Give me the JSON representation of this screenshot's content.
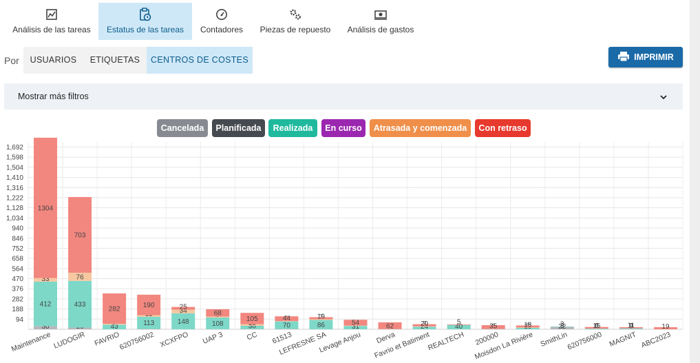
{
  "top_tabs": [
    {
      "label": "Análisis de las tareas",
      "icon": "chart-report-icon",
      "active": false
    },
    {
      "label": "Estatus de las tareas",
      "icon": "clipboard-clock-icon",
      "active": true
    },
    {
      "label": "Contadores",
      "icon": "gauge-icon",
      "active": false
    },
    {
      "label": "Piezas de repuesto",
      "icon": "gears-icon",
      "active": false
    },
    {
      "label": "Análisis de gastos",
      "icon": "money-icon",
      "active": false
    }
  ],
  "group_by": {
    "label": "Por",
    "tabs": [
      {
        "label": "USUARIOS",
        "active": false
      },
      {
        "label": "ETIQUETAS",
        "active": false
      },
      {
        "label": "CENTROS DE COSTES",
        "active": true
      }
    ]
  },
  "print_button": {
    "label": "IMPRIMIR",
    "icon": "printer-icon"
  },
  "filters": {
    "label": "Mostrar más filtros",
    "icon": "chevron-down-icon"
  },
  "legend": [
    {
      "label": "Cancelada",
      "color": "#878b91"
    },
    {
      "label": "Planificada",
      "color": "#454a50"
    },
    {
      "label": "Realizada",
      "color": "#1fb99e"
    },
    {
      "label": "En curso",
      "color": "#9b27b0"
    },
    {
      "label": "Atrasada y comenzada",
      "color": "#ef8f4a"
    },
    {
      "label": "Con retraso",
      "color": "#e8392e"
    }
  ],
  "chart_data": {
    "type": "bar",
    "stacked": true,
    "grid": true,
    "ylim": [
      0,
      1740
    ],
    "yticks": [
      0,
      94,
      188,
      282,
      376,
      470,
      564,
      658,
      752,
      846,
      940,
      1034,
      1128,
      1222,
      1316,
      1410,
      1504,
      1598,
      1692
    ],
    "categories": [
      "Maintenance",
      "LUDOGIR",
      "FAVRIO",
      "620756002",
      "XCXFPO",
      "UAP 3",
      "CC",
      "61513",
      "LEFRESNE SA",
      "Levage Anjou",
      "Derva",
      "Favrio et Batiment",
      "REALTECH",
      "200000",
      "Moisdon La Rivière",
      "SmithLin",
      "620756000",
      "MAGNIT",
      "ABC2023"
    ],
    "series": [
      {
        "name": "Cancelada",
        "color": "#b5b8bc",
        "values": [
          30,
          16,
          0,
          3,
          0,
          1,
          2,
          3,
          0,
          0,
          2,
          0,
          0,
          3,
          0,
          22,
          0,
          0,
          0
        ],
        "labels": [
          "30",
          "16",
          "",
          "3",
          "",
          "1",
          "2",
          "3",
          "",
          "",
          "2",
          "",
          "",
          "3",
          "",
          "22",
          "",
          "",
          ""
        ]
      },
      {
        "name": "Planificada",
        "color": "#7a7e84",
        "values": [
          0,
          0,
          0,
          0,
          0,
          0,
          0,
          0,
          0,
          0,
          0,
          0,
          0,
          0,
          0,
          0,
          0,
          0,
          0
        ],
        "labels": [
          "",
          "",
          "",
          "",
          "",
          "",
          "",
          "",
          "",
          "",
          "",
          "",
          "",
          "",
          "",
          "",
          "",
          "",
          ""
        ]
      },
      {
        "name": "Realizada",
        "color": "#7dd8c8",
        "values": [
          412,
          433,
          43,
          113,
          148,
          108,
          30,
          70,
          86,
          31,
          0,
          24,
          40,
          0,
          13,
          3,
          6,
          8,
          0
        ],
        "labels": [
          "412",
          "433",
          "43",
          "113",
          "148",
          "108",
          "30",
          "70",
          "86",
          "31",
          "",
          "24",
          "40",
          "",
          "13",
          "3",
          "6",
          "8",
          ""
        ]
      },
      {
        "name": "En curso",
        "color": "#c890d6",
        "values": [
          0,
          0,
          0,
          0,
          0,
          0,
          0,
          0,
          0,
          0,
          0,
          0,
          0,
          0,
          0,
          0,
          0,
          0,
          0
        ],
        "labels": [
          "",
          "",
          "",
          "",
          "",
          "",
          "",
          "",
          "",
          "",
          "",
          "",
          "",
          "",
          "",
          "",
          "",
          "",
          ""
        ]
      },
      {
        "name": "Atrasada y comenzada",
        "color": "#f6c8a2",
        "values": [
          33,
          76,
          8,
          15,
          34,
          9,
          15,
          3,
          7,
          3,
          0,
          3,
          0,
          0,
          4,
          0,
          0,
          0,
          0
        ],
        "labels": [
          "33",
          "76",
          "8",
          "15",
          "34",
          "9",
          "15",
          "3",
          "7",
          "3",
          "",
          "3",
          "",
          "",
          "4",
          "",
          "",
          "",
          ""
        ]
      },
      {
        "name": "Con retraso",
        "color": "#f2877f",
        "values": [
          1304,
          703,
          282,
          190,
          25,
          68,
          105,
          44,
          19,
          54,
          62,
          20,
          5,
          35,
          18,
          0,
          15,
          11,
          19
        ],
        "labels": [
          "1304",
          "703",
          "282",
          "190",
          "25",
          "68",
          "105",
          "44",
          "19",
          "54",
          "62",
          "20",
          "5",
          "35",
          "18",
          "",
          "15",
          "11",
          "19"
        ]
      }
    ],
    "extra_labels": [
      {
        "category": "SmithLin",
        "text": "3"
      },
      {
        "category": "620756000",
        "text": "0"
      },
      {
        "category": "MAGNIT",
        "text": "0"
      }
    ]
  }
}
